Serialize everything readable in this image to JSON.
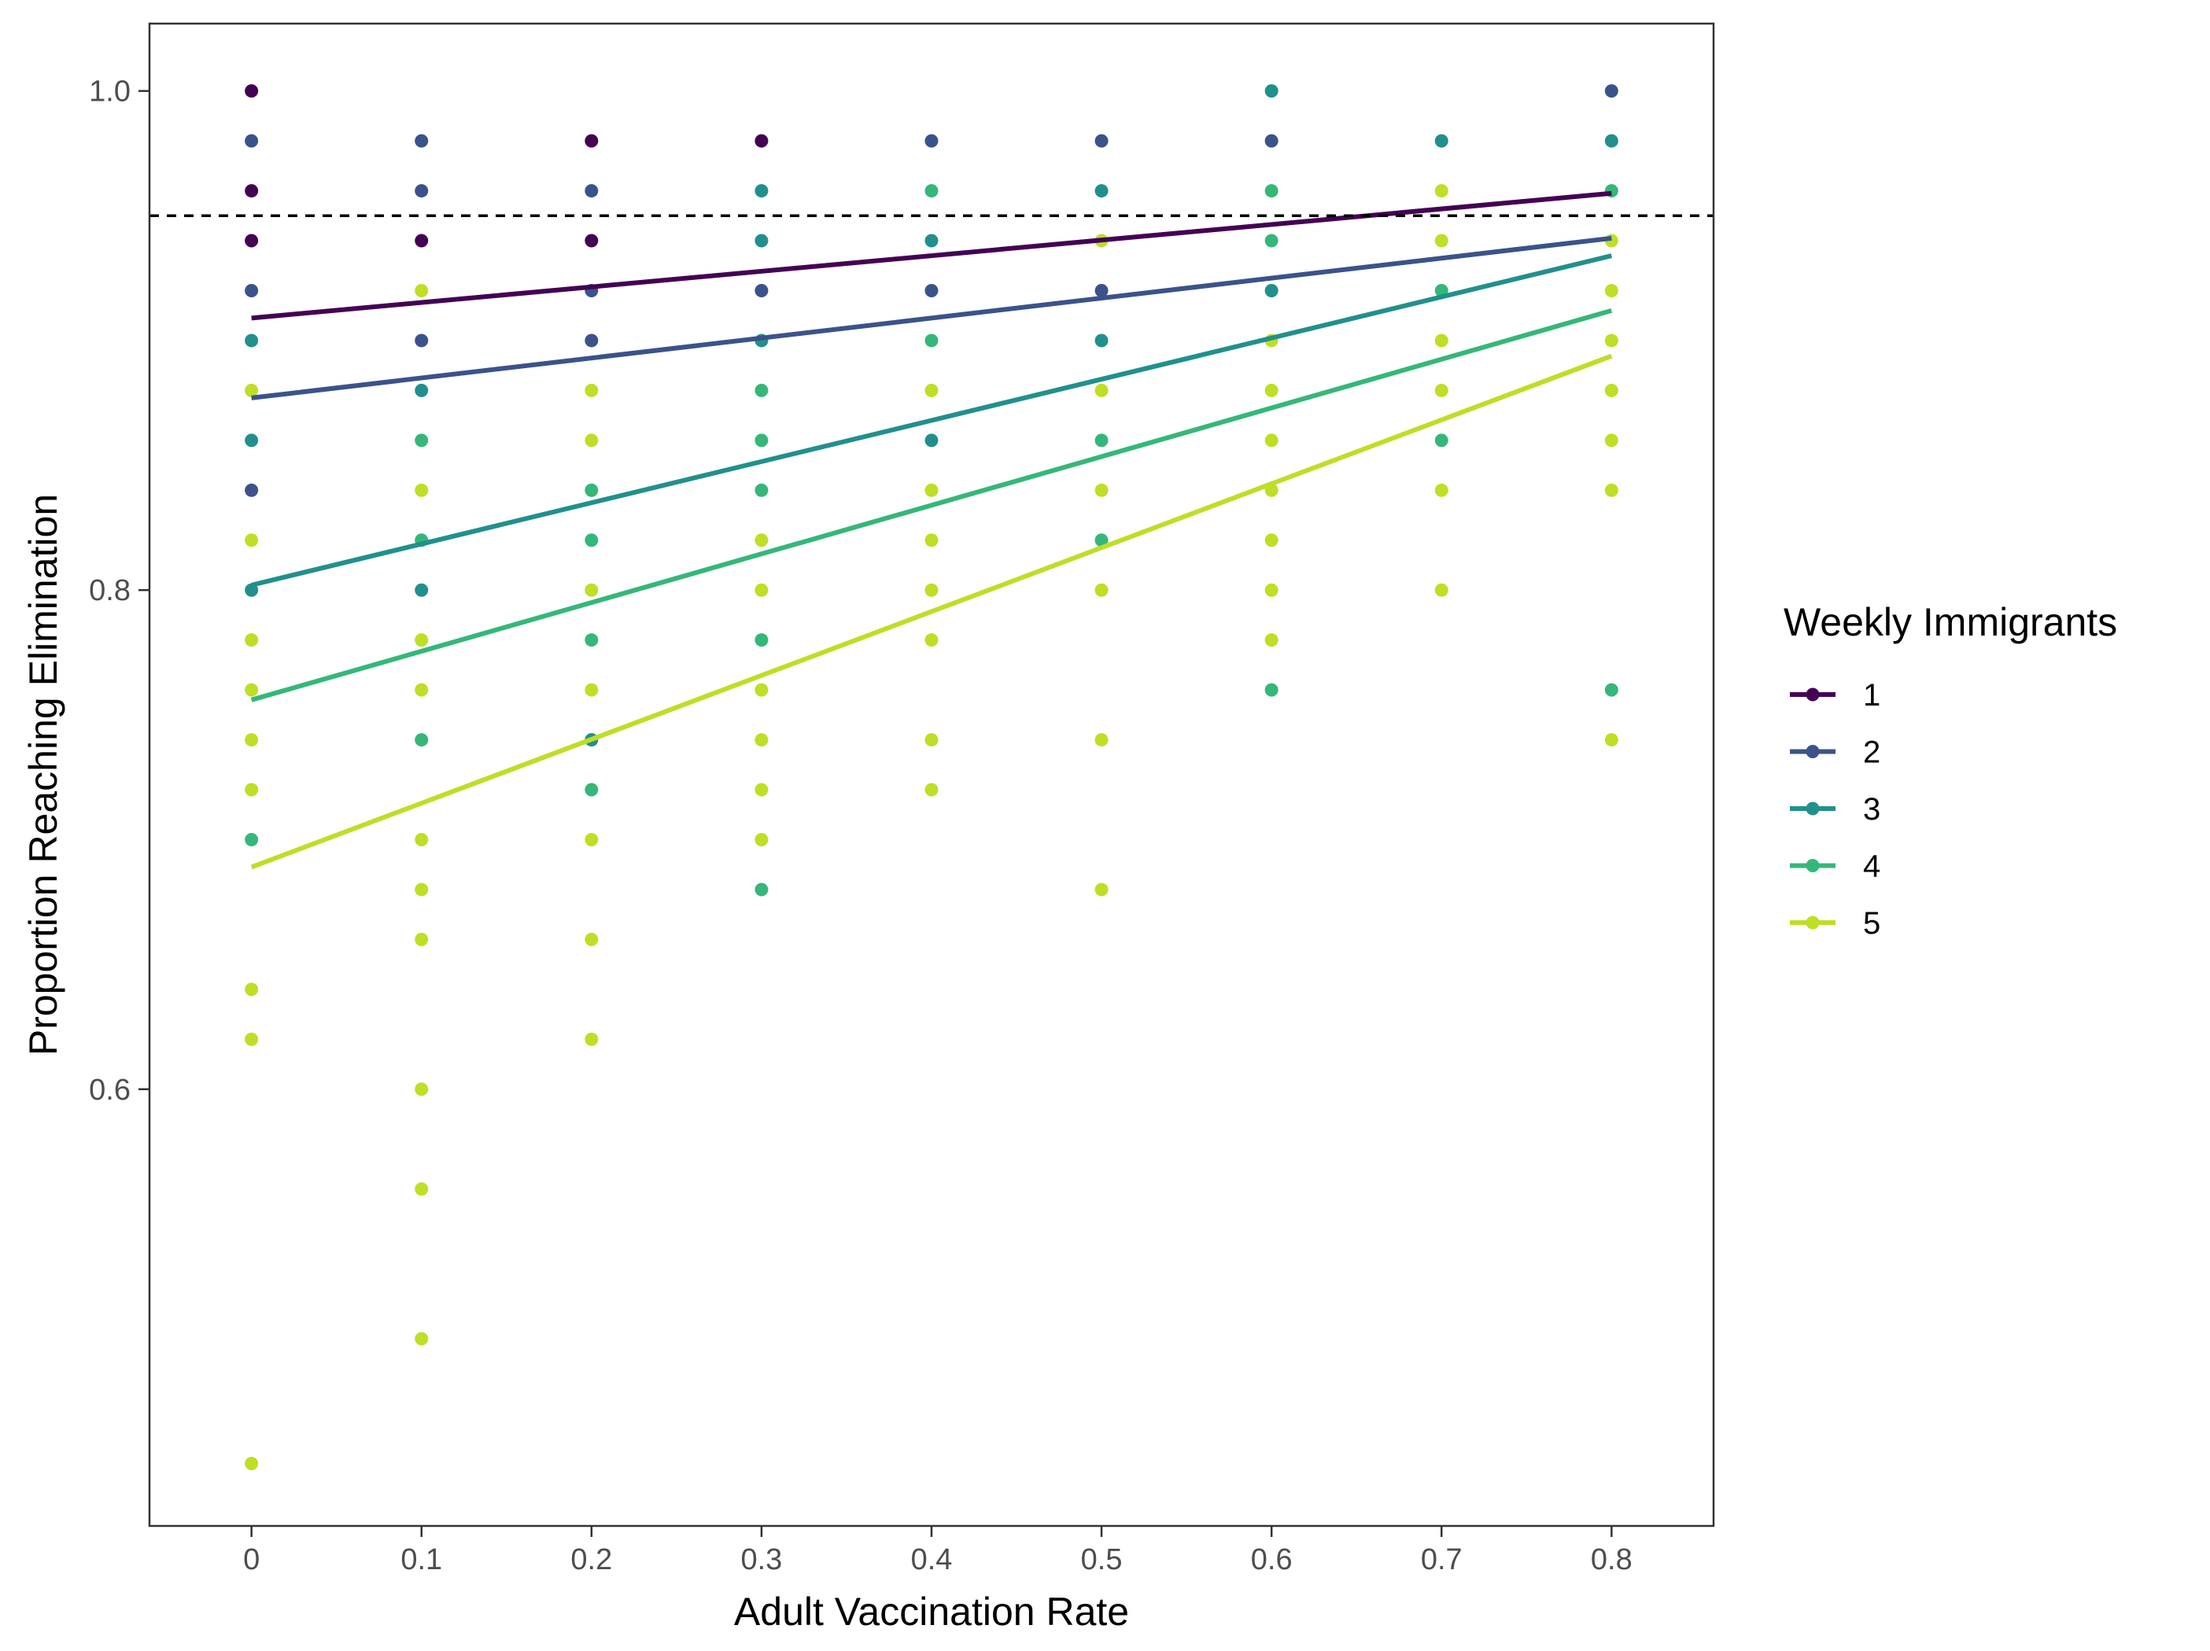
{
  "chart_data": {
    "type": "scatter",
    "xlabel": "Adult Vaccination Rate",
    "ylabel": "Proportion Reaching Elimination",
    "x_ticks": [
      "0",
      "0.1",
      "0.2",
      "0.3",
      "0.4",
      "0.5",
      "0.6",
      "0.7",
      "0.8"
    ],
    "y_ticks": [
      "0.6",
      "0.8",
      "1.0"
    ],
    "xlim": [
      -0.06,
      0.86
    ],
    "ylim": [
      0.425,
      1.027
    ],
    "reference_line": {
      "y": 0.95,
      "style": "dashed",
      "color": "#000000"
    },
    "grid": false,
    "legend": {
      "title": "Weekly Immigrants",
      "position": "right",
      "entries": [
        "1",
        "2",
        "3",
        "4",
        "5"
      ]
    },
    "series": [
      {
        "name": "1",
        "color": "#440154",
        "fit": {
          "intercept": 0.909,
          "slope": 0.0625
        },
        "points": [
          [
            0,
            1.0
          ],
          [
            0,
            0.96
          ],
          [
            0,
            0.94
          ],
          [
            0.1,
            0.94
          ],
          [
            0.2,
            0.98
          ],
          [
            0.2,
            0.94
          ],
          [
            0.3,
            0.98
          ]
        ]
      },
      {
        "name": "2",
        "color": "#3b528b",
        "fit": {
          "intercept": 0.877,
          "slope": 0.08
        },
        "points": [
          [
            0,
            0.98
          ],
          [
            0,
            0.92
          ],
          [
            0,
            0.84
          ],
          [
            0.1,
            0.98
          ],
          [
            0.1,
            0.96
          ],
          [
            0.1,
            0.9
          ],
          [
            0.2,
            0.96
          ],
          [
            0.2,
            0.92
          ],
          [
            0.2,
            0.9
          ],
          [
            0.3,
            0.92
          ],
          [
            0.4,
            0.98
          ],
          [
            0.4,
            0.92
          ],
          [
            0.5,
            0.98
          ],
          [
            0.5,
            0.92
          ],
          [
            0.6,
            0.98
          ],
          [
            0.8,
            1.0
          ]
        ]
      },
      {
        "name": "3",
        "color": "#21908c",
        "fit": {
          "intercept": 0.802,
          "slope": 0.165
        },
        "points": [
          [
            0,
            0.9
          ],
          [
            0,
            0.86
          ],
          [
            0,
            0.8
          ],
          [
            0.1,
            0.88
          ],
          [
            0.1,
            0.8
          ],
          [
            0.2,
            0.74
          ],
          [
            0.3,
            0.96
          ],
          [
            0.3,
            0.94
          ],
          [
            0.3,
            0.9
          ],
          [
            0.4,
            0.94
          ],
          [
            0.4,
            0.86
          ],
          [
            0.5,
            0.96
          ],
          [
            0.5,
            0.9
          ],
          [
            0.6,
            1.0
          ],
          [
            0.6,
            0.92
          ],
          [
            0.7,
            0.98
          ],
          [
            0.8,
            0.98
          ]
        ]
      },
      {
        "name": "4",
        "color": "#35b779",
        "fit": {
          "intercept": 0.756,
          "slope": 0.195
        },
        "points": [
          [
            0,
            0.7
          ],
          [
            0.1,
            0.86
          ],
          [
            0.1,
            0.82
          ],
          [
            0.1,
            0.74
          ],
          [
            0.2,
            0.84
          ],
          [
            0.2,
            0.82
          ],
          [
            0.2,
            0.78
          ],
          [
            0.2,
            0.72
          ],
          [
            0.3,
            0.88
          ],
          [
            0.3,
            0.86
          ],
          [
            0.3,
            0.84
          ],
          [
            0.3,
            0.78
          ],
          [
            0.3,
            0.68
          ],
          [
            0.4,
            0.96
          ],
          [
            0.4,
            0.9
          ],
          [
            0.5,
            0.86
          ],
          [
            0.5,
            0.82
          ],
          [
            0.6,
            0.96
          ],
          [
            0.6,
            0.94
          ],
          [
            0.6,
            0.76
          ],
          [
            0.7,
            0.92
          ],
          [
            0.7,
            0.86
          ],
          [
            0.8,
            0.96
          ],
          [
            0.8,
            0.76
          ]
        ]
      },
      {
        "name": "5",
        "color": "#bddf26",
        "fit": {
          "intercept": 0.689,
          "slope": 0.256
        },
        "points": [
          [
            0,
            0.88
          ],
          [
            0,
            0.82
          ],
          [
            0,
            0.78
          ],
          [
            0,
            0.76
          ],
          [
            0,
            0.74
          ],
          [
            0,
            0.72
          ],
          [
            0,
            0.64
          ],
          [
            0,
            0.62
          ],
          [
            0,
            0.45
          ],
          [
            0.1,
            0.92
          ],
          [
            0.1,
            0.84
          ],
          [
            0.1,
            0.78
          ],
          [
            0.1,
            0.76
          ],
          [
            0.1,
            0.7
          ],
          [
            0.1,
            0.68
          ],
          [
            0.1,
            0.66
          ],
          [
            0.1,
            0.6
          ],
          [
            0.1,
            0.56
          ],
          [
            0.1,
            0.5
          ],
          [
            0.2,
            0.88
          ],
          [
            0.2,
            0.86
          ],
          [
            0.2,
            0.8
          ],
          [
            0.2,
            0.76
          ],
          [
            0.2,
            0.74
          ],
          [
            0.2,
            0.7
          ],
          [
            0.2,
            0.66
          ],
          [
            0.2,
            0.62
          ],
          [
            0.3,
            0.82
          ],
          [
            0.3,
            0.8
          ],
          [
            0.3,
            0.76
          ],
          [
            0.3,
            0.74
          ],
          [
            0.3,
            0.72
          ],
          [
            0.3,
            0.7
          ],
          [
            0.4,
            0.88
          ],
          [
            0.4,
            0.84
          ],
          [
            0.4,
            0.82
          ],
          [
            0.4,
            0.8
          ],
          [
            0.4,
            0.78
          ],
          [
            0.4,
            0.74
          ],
          [
            0.4,
            0.72
          ],
          [
            0.5,
            0.94
          ],
          [
            0.5,
            0.88
          ],
          [
            0.5,
            0.84
          ],
          [
            0.5,
            0.8
          ],
          [
            0.5,
            0.74
          ],
          [
            0.5,
            0.68
          ],
          [
            0.6,
            0.92
          ],
          [
            0.6,
            0.9
          ],
          [
            0.6,
            0.88
          ],
          [
            0.6,
            0.86
          ],
          [
            0.6,
            0.84
          ],
          [
            0.6,
            0.82
          ],
          [
            0.6,
            0.8
          ],
          [
            0.6,
            0.78
          ],
          [
            0.7,
            0.96
          ],
          [
            0.7,
            0.94
          ],
          [
            0.7,
            0.9
          ],
          [
            0.7,
            0.88
          ],
          [
            0.7,
            0.84
          ],
          [
            0.7,
            0.8
          ],
          [
            0.8,
            0.94
          ],
          [
            0.8,
            0.92
          ],
          [
            0.8,
            0.9
          ],
          [
            0.8,
            0.88
          ],
          [
            0.8,
            0.86
          ],
          [
            0.8,
            0.84
          ],
          [
            0.8,
            0.74
          ]
        ]
      }
    ]
  }
}
